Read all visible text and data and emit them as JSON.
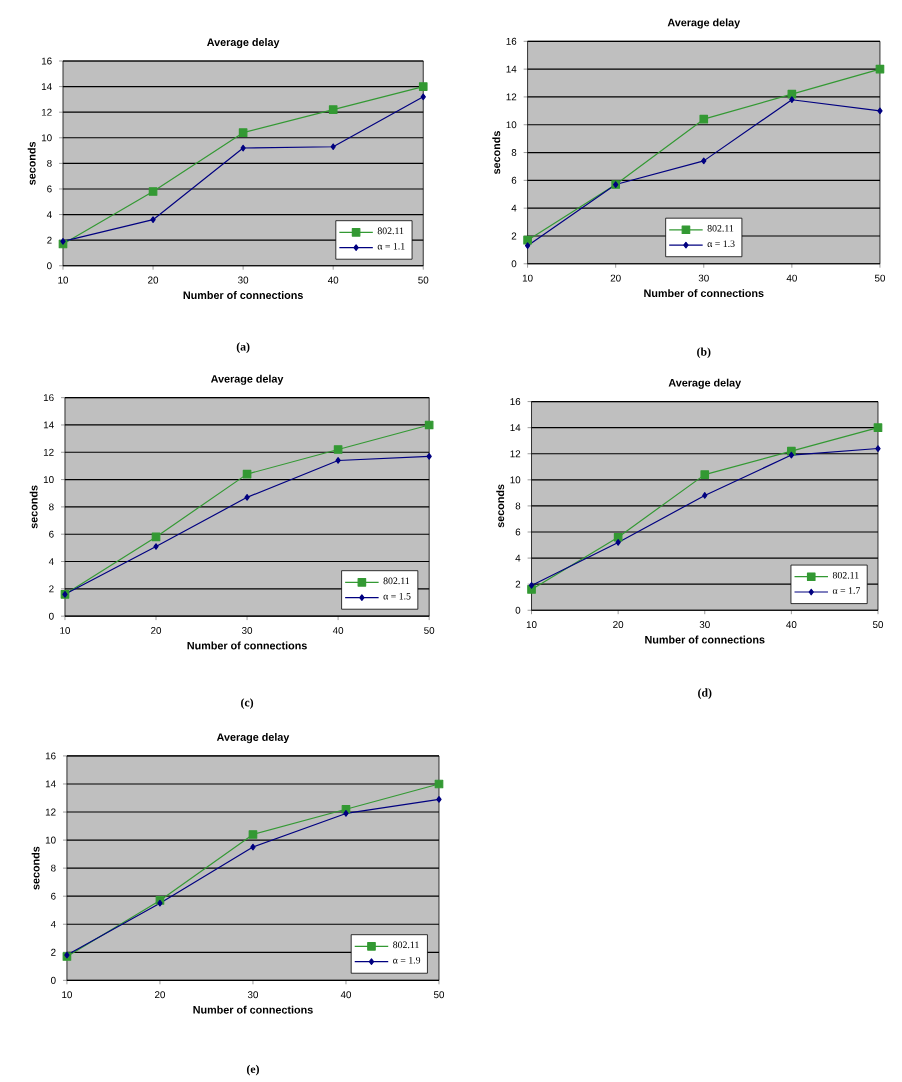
{
  "chart_data": [
    {
      "type": "line",
      "title": "Average delay",
      "xlabel": "Number of connections",
      "ylabel": "seconds",
      "x": [
        10,
        20,
        30,
        40,
        50
      ],
      "xlim": [
        10,
        50
      ],
      "ylim": [
        0,
        16
      ],
      "xticks": [
        10,
        20,
        30,
        40,
        50
      ],
      "yticks": [
        0,
        2,
        4,
        6,
        8,
        10,
        12,
        14,
        16
      ],
      "grid": "y",
      "legend": "bottom right",
      "annotations": [
        "(a)"
      ],
      "series": [
        {
          "name": "802.11",
          "color": "#339933",
          "marker": "square",
          "values": [
            1.7,
            5.8,
            10.4,
            12.2,
            14.0
          ]
        },
        {
          "name": "α = 1.1",
          "color": "#000080",
          "marker": "diamond",
          "values": [
            1.9,
            3.6,
            9.2,
            9.3,
            13.2
          ]
        }
      ]
    },
    {
      "type": "line",
      "title": "Average delay",
      "xlabel": "Number of connections",
      "ylabel": "seconds",
      "x": [
        10,
        20,
        30,
        40,
        50
      ],
      "xlim": [
        10,
        50
      ],
      "ylim": [
        0,
        16
      ],
      "xticks": [
        10,
        20,
        30,
        40,
        50
      ],
      "yticks": [
        0,
        2,
        4,
        6,
        8,
        10,
        12,
        14,
        16
      ],
      "grid": "y",
      "legend": "bottom",
      "annotations": [
        "(b)"
      ],
      "series": [
        {
          "name": "802.11",
          "color": "#339933",
          "marker": "square",
          "values": [
            1.7,
            5.7,
            10.4,
            12.2,
            14.0
          ]
        },
        {
          "name": "α = 1.3",
          "color": "#000080",
          "marker": "diamond",
          "values": [
            1.3,
            5.7,
            7.4,
            11.8,
            11.0
          ]
        }
      ]
    },
    {
      "type": "line",
      "title": "Average delay",
      "xlabel": "Number of connections",
      "ylabel": "seconds",
      "x": [
        10,
        20,
        30,
        40,
        50
      ],
      "xlim": [
        10,
        50
      ],
      "ylim": [
        0,
        16
      ],
      "xticks": [
        10,
        20,
        30,
        40,
        50
      ],
      "yticks": [
        0,
        2,
        4,
        6,
        8,
        10,
        12,
        14,
        16
      ],
      "grid": "y",
      "legend": "bottom right",
      "annotations": [
        "(c)"
      ],
      "series": [
        {
          "name": "802.11",
          "color": "#339933",
          "marker": "square",
          "values": [
            1.6,
            5.8,
            10.4,
            12.2,
            14.0
          ]
        },
        {
          "name": "α = 1.5",
          "color": "#000080",
          "marker": "diamond",
          "values": [
            1.6,
            5.1,
            8.7,
            11.4,
            11.7
          ]
        }
      ]
    },
    {
      "type": "line",
      "title": "Average delay",
      "xlabel": "Number of connections",
      "ylabel": "seconds",
      "x": [
        10,
        20,
        30,
        40,
        50
      ],
      "xlim": [
        10,
        50
      ],
      "ylim": [
        0,
        16
      ],
      "xticks": [
        10,
        20,
        30,
        40,
        50
      ],
      "yticks": [
        0,
        2,
        4,
        6,
        8,
        10,
        12,
        14,
        16
      ],
      "grid": "y",
      "legend": "bottom right",
      "annotations": [
        "(d)"
      ],
      "series": [
        {
          "name": "802.11",
          "color": "#339933",
          "marker": "square",
          "values": [
            1.6,
            5.6,
            10.4,
            12.2,
            14.0
          ]
        },
        {
          "name": "α = 1.7",
          "color": "#000080",
          "marker": "diamond",
          "values": [
            1.9,
            5.2,
            8.8,
            11.9,
            12.4
          ]
        }
      ]
    },
    {
      "type": "line",
      "title": "Average delay",
      "xlabel": "Number of connections",
      "ylabel": "seconds",
      "x": [
        10,
        20,
        30,
        40,
        50
      ],
      "xlim": [
        10,
        50
      ],
      "ylim": [
        0,
        16
      ],
      "xticks": [
        10,
        20,
        30,
        40,
        50
      ],
      "yticks": [
        0,
        2,
        4,
        6,
        8,
        10,
        12,
        14,
        16
      ],
      "grid": "y",
      "legend": "bottom right",
      "annotations": [
        "(e)"
      ],
      "series": [
        {
          "name": "802.11",
          "color": "#339933",
          "marker": "square",
          "values": [
            1.7,
            5.7,
            10.4,
            12.2,
            14.0
          ]
        },
        {
          "name": "α = 1.9",
          "color": "#000080",
          "marker": "diamond",
          "values": [
            1.8,
            5.5,
            9.5,
            11.9,
            12.9
          ]
        }
      ]
    }
  ]
}
